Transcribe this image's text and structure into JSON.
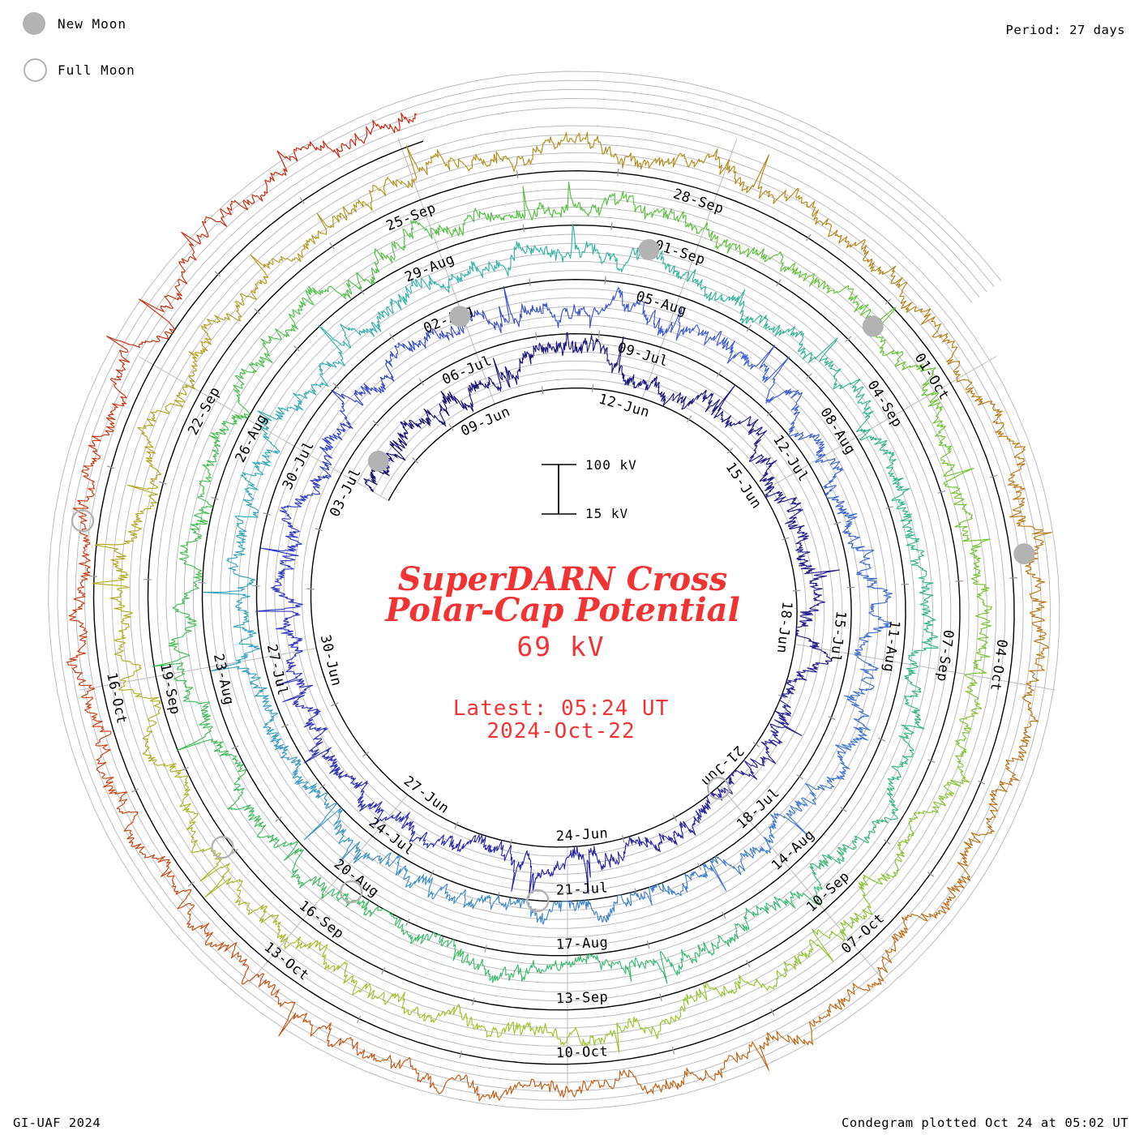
{
  "header": {
    "period_label": "Period: 27 days"
  },
  "legend": {
    "new_moon": "New Moon",
    "full_moon": "Full Moon"
  },
  "footer": {
    "left": "GI-UAF 2024",
    "right": "Condegram plotted Oct 24 at 05:02 UT"
  },
  "center": {
    "title_line1": "SuperDARN Cross",
    "title_line2": "Polar-Cap Potential",
    "value": "69 kV",
    "latest_line1": "Latest: 05:24 UT",
    "latest_line2": "2024-Oct-22"
  },
  "scalebar": {
    "top_label": "100 kV",
    "bottom_label": "15 kV"
  },
  "colors": {
    "text": "#000000",
    "red_text": "#f13333",
    "grid_gray": "#bcbcbc",
    "tick_gray": "#9a9a9a",
    "moon_gray": "#b3b3b3",
    "baseline_black": "#000000"
  },
  "chart_data": {
    "type": "line",
    "subtype": "condegram-spiral-time-series",
    "title": "SuperDARN Cross Polar-Cap Potential",
    "units": "kV",
    "current_kv": 69,
    "latest_time_ut": "05:24 UT",
    "latest_date": "2024-Oct-22",
    "period_days": 27,
    "start_date": "2024-06-06",
    "end_day_index": 138.22,
    "grid_end_day_index": 143.5,
    "radial_scale": {
      "baseline_kv": 15,
      "reference_kv": 100
    },
    "legend_position": "top-left",
    "grid": "on",
    "date_label_step_days": 3,
    "date_labels": [
      "09-Jun",
      "12-Jun",
      "15-Jun",
      "18-Jun",
      "21-Jun",
      "24-Jun",
      "27-Jun",
      "30-Jun",
      "03-Jul",
      "06-Jul",
      "09-Jul",
      "12-Jul",
      "15-Jul",
      "18-Jul",
      "21-Jul",
      "24-Jul",
      "27-Jul",
      "30-Jul",
      "02-Aug",
      "05-Aug",
      "08-Aug",
      "11-Aug",
      "14-Aug",
      "17-Aug",
      "20-Aug",
      "23-Aug",
      "26-Aug",
      "29-Aug",
      "01-Sep",
      "04-Sep",
      "07-Sep",
      "10-Sep",
      "13-Sep",
      "16-Sep",
      "19-Sep",
      "22-Sep",
      "25-Sep",
      "28-Sep",
      "01-Oct",
      "04-Oct",
      "07-Oct",
      "10-Oct",
      "13-Oct",
      "16-Oct"
    ],
    "moons": [
      {
        "type": "new",
        "date": "06-Jun",
        "day": 0.53,
        "kv": 66
      },
      {
        "type": "new",
        "date": "05-Jul",
        "day": 29.96,
        "kv": 85
      },
      {
        "type": "new",
        "date": "04-Aug",
        "day": 59.47,
        "kv": 80
      },
      {
        "type": "new",
        "date": "03-Sep",
        "day": 89.08,
        "kv": 62
      },
      {
        "type": "new",
        "date": "02-Oct",
        "day": 118.78,
        "kv": 39
      },
      {
        "type": "full",
        "date": "21-Jun",
        "day": 15.05,
        "kv": 17
      },
      {
        "type": "full",
        "date": "21-Jul",
        "day": 45.43,
        "kv": 15
      },
      {
        "type": "full",
        "date": "19-Aug",
        "day": 74.77,
        "kv": 20
      },
      {
        "type": "full",
        "date": "17-Sep",
        "day": 103.11,
        "kv": 29
      },
      {
        "type": "full",
        "date": "17-Oct",
        "day": 133.48,
        "kv": 44
      }
    ],
    "trace_color_stops": [
      [
        0,
        "#16126e"
      ],
      [
        8,
        "#221c86"
      ],
      [
        16,
        "#2b26a0"
      ],
      [
        22,
        "#2e30b6"
      ],
      [
        27,
        "#3242ca"
      ],
      [
        33,
        "#3a58d4"
      ],
      [
        39,
        "#3e70cf"
      ],
      [
        45,
        "#3f86c9"
      ],
      [
        51,
        "#38a3c1"
      ],
      [
        57,
        "#2fb3a9"
      ],
      [
        63,
        "#2fb48d"
      ],
      [
        70,
        "#35b973"
      ],
      [
        78,
        "#3fbd55"
      ],
      [
        85,
        "#50c13d"
      ],
      [
        92,
        "#74c22e"
      ],
      [
        99,
        "#9dc427"
      ],
      [
        105,
        "#b2ae20"
      ],
      [
        111,
        "#b29218"
      ],
      [
        117,
        "#b77d12"
      ],
      [
        123,
        "#be670f"
      ],
      [
        129,
        "#c54f0d"
      ],
      [
        133,
        "#c9380c"
      ],
      [
        139,
        "#c71f0b"
      ]
    ],
    "daily_mean_kv": [
      [
        0,
        58
      ],
      [
        2,
        42
      ],
      [
        4,
        68
      ],
      [
        5,
        80
      ],
      [
        6,
        55
      ],
      [
        9,
        48
      ],
      [
        12,
        42
      ],
      [
        15,
        30
      ],
      [
        18,
        42
      ],
      [
        21,
        55
      ],
      [
        22,
        72
      ],
      [
        24,
        50
      ],
      [
        27,
        45
      ],
      [
        29,
        80
      ],
      [
        31,
        55
      ],
      [
        33,
        58
      ],
      [
        36,
        45
      ],
      [
        39,
        50
      ],
      [
        40,
        68
      ],
      [
        42,
        40
      ],
      [
        44,
        22
      ],
      [
        45,
        18
      ],
      [
        46,
        35
      ],
      [
        48,
        45
      ],
      [
        49,
        35
      ],
      [
        51,
        50
      ],
      [
        53,
        45
      ],
      [
        55,
        52
      ],
      [
        57,
        58
      ],
      [
        59,
        76
      ],
      [
        61,
        48
      ],
      [
        63,
        52
      ],
      [
        66,
        42
      ],
      [
        68,
        65
      ],
      [
        70,
        52
      ],
      [
        72,
        45
      ],
      [
        74,
        28
      ],
      [
        76,
        50
      ],
      [
        78,
        48
      ],
      [
        80,
        42
      ],
      [
        82,
        52
      ],
      [
        84,
        48
      ],
      [
        86,
        52
      ],
      [
        88,
        58
      ],
      [
        89,
        62
      ],
      [
        91,
        52
      ],
      [
        93,
        55
      ],
      [
        95,
        52
      ],
      [
        97,
        58
      ],
      [
        98,
        70
      ],
      [
        100,
        52
      ],
      [
        102,
        55
      ],
      [
        104,
        48
      ],
      [
        106,
        52
      ],
      [
        108,
        48
      ],
      [
        110,
        52
      ],
      [
        112,
        55
      ],
      [
        114,
        58
      ],
      [
        116,
        52
      ],
      [
        118,
        45
      ],
      [
        120,
        50
      ],
      [
        122,
        55
      ],
      [
        124,
        62
      ],
      [
        126,
        70
      ],
      [
        128,
        58
      ],
      [
        130,
        52
      ],
      [
        132,
        46
      ],
      [
        133,
        44
      ],
      [
        134,
        52
      ],
      [
        136,
        58
      ],
      [
        138,
        66
      ]
    ],
    "noise_seed": 77041
  }
}
